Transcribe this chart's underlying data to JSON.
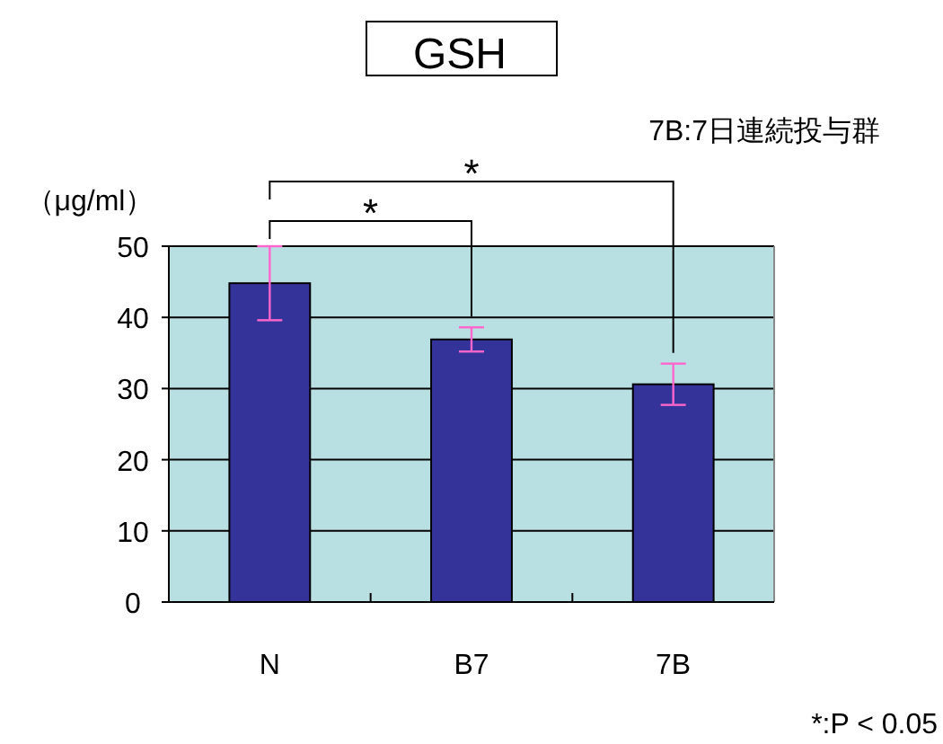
{
  "chart_data": {
    "type": "bar",
    "title": "GSH",
    "subtitle": "7B:7日連続投与群",
    "ylabel": "（μg/ml）",
    "categories": [
      "N",
      "B7",
      "7B"
    ],
    "values": [
      44.8,
      36.9,
      30.6
    ],
    "errors": [
      5.2,
      1.7,
      2.9
    ],
    "color": "#333399",
    "ylim": [
      0,
      50
    ],
    "yticks": [
      0,
      10,
      20,
      30,
      40,
      50
    ],
    "grid": "y",
    "annotations": [
      "*",
      "*",
      "*:P < 0.05"
    ]
  }
}
